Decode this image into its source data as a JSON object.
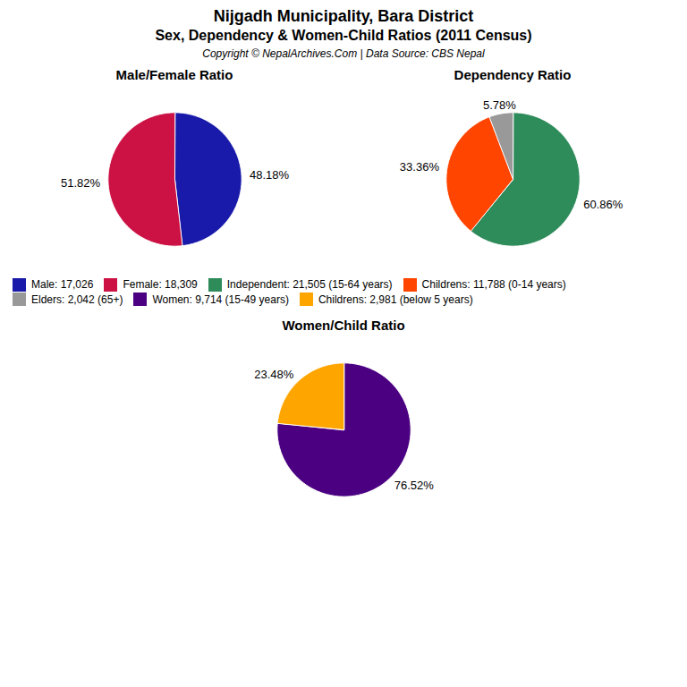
{
  "title": "Nijgadh Municipality, Bara District",
  "subtitle": "Sex, Dependency & Women-Child Ratios (2011 Census)",
  "annotations": [
    "Copyright © NepalArchives.Com | Data Source: CBS Nepal"
  ],
  "chart_data": [
    {
      "type": "pie",
      "title": "Male/Female Ratio",
      "categories": [
        "Male: 17,026",
        "Female: 18,309"
      ],
      "values": [
        48.18,
        51.82
      ],
      "value_labels": [
        "48.18%",
        "51.82%"
      ],
      "colors": [
        "#1a1aaa",
        "#cc1144"
      ],
      "data_labels": true,
      "legend": "center"
    },
    {
      "type": "pie",
      "title": "Dependency Ratio",
      "categories": [
        "Independent: 21,505 (15-64 years)",
        "Childrens: 11,788 (0-14 years)",
        "Elders: 2,042 (65+)"
      ],
      "values": [
        60.86,
        33.36,
        5.78
      ],
      "value_labels": [
        "60.86%",
        "33.36%",
        "5.78%"
      ],
      "colors": [
        "#2e8b5a",
        "#ff4500",
        "#999999"
      ],
      "data_labels": true,
      "legend": "center"
    },
    {
      "type": "pie",
      "title": "Women/Child Ratio",
      "categories": [
        "Women: 9,714 (15-49 years)",
        "Childrens: 2,981 (below 5 years)"
      ],
      "values": [
        76.52,
        23.48
      ],
      "value_labels": [
        "76.52%",
        "23.48%"
      ],
      "colors": [
        "#4B0082",
        "#FFA500"
      ],
      "data_labels": true,
      "legend": "center"
    }
  ]
}
